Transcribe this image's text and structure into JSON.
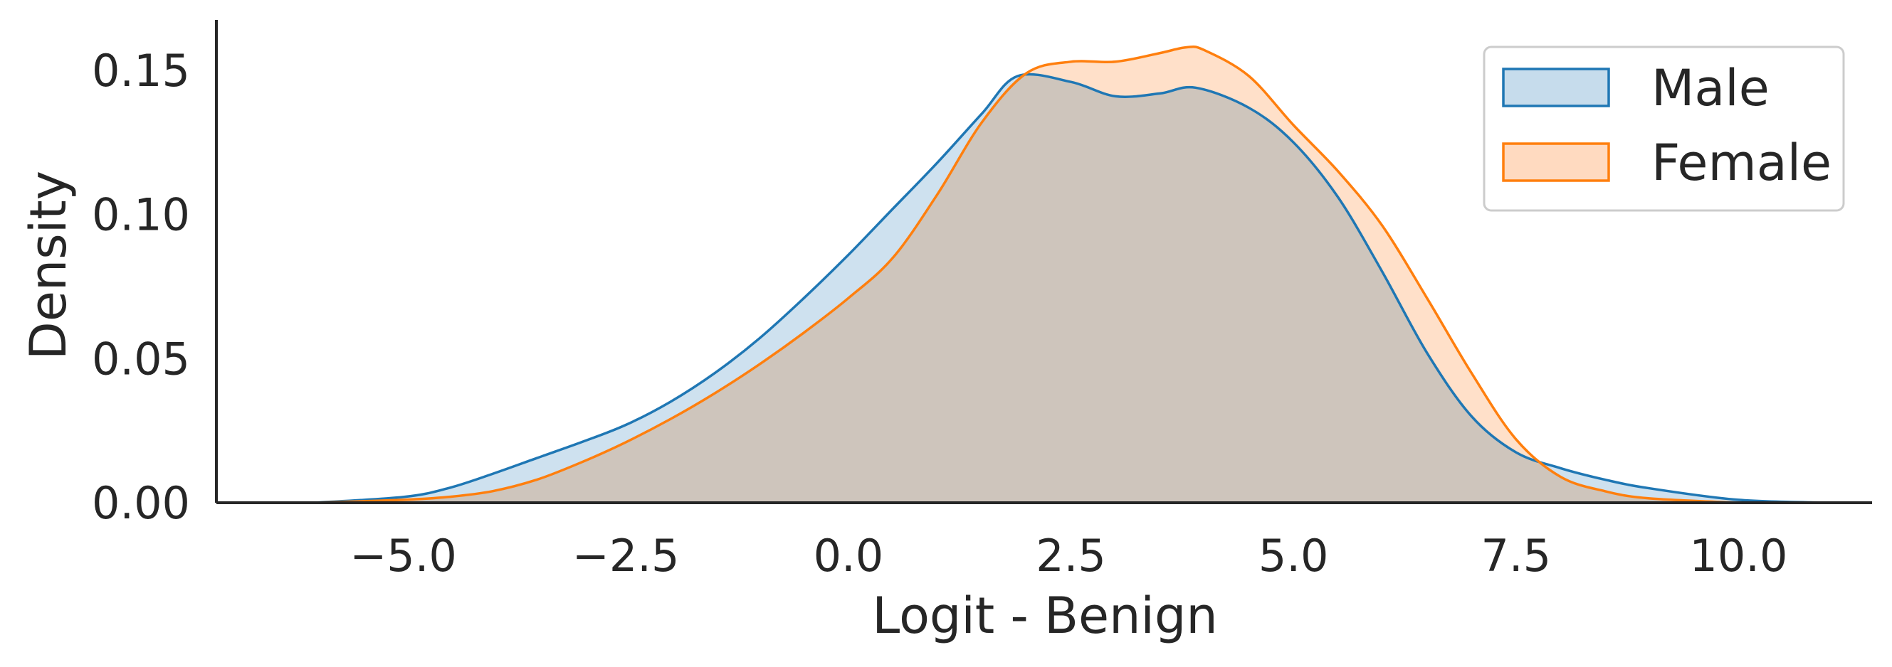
{
  "chart_data": {
    "type": "area",
    "title": "",
    "xlabel": "Logit - Benign",
    "ylabel": "Density",
    "xlim": [
      -7.1,
      11.5
    ],
    "ylim": [
      0,
      0.1675
    ],
    "xticks": [
      -5.0,
      -2.5,
      0.0,
      2.5,
      5.0,
      7.5,
      10.0
    ],
    "xtick_labels": [
      "−5.0",
      "−2.5",
      "0.0",
      "2.5",
      "5.0",
      "7.5",
      "10.0"
    ],
    "yticks": [
      0.0,
      0.05,
      0.1,
      0.15
    ],
    "ytick_labels": [
      "0.00",
      "0.05",
      "0.10",
      "0.15"
    ],
    "grid": false,
    "legend_position": "top-right",
    "series": [
      {
        "name": "Male",
        "color": "#1f77b4",
        "fill": "#c6dcec",
        "x": [
          -6.0,
          -5.0,
          -4.5,
          -4.0,
          -3.5,
          -3.0,
          -2.5,
          -2.0,
          -1.5,
          -1.0,
          -0.5,
          0.0,
          0.5,
          1.0,
          1.5,
          1.9,
          2.5,
          3.0,
          3.5,
          3.9,
          4.5,
          5.0,
          5.5,
          6.0,
          6.5,
          7.0,
          7.5,
          8.0,
          8.5,
          9.0,
          10.0,
          11.0
        ],
        "y": [
          0.0,
          0.002,
          0.005,
          0.01,
          0.0155,
          0.021,
          0.027,
          0.035,
          0.045,
          0.057,
          0.071,
          0.086,
          0.102,
          0.118,
          0.135,
          0.148,
          0.146,
          0.141,
          0.142,
          0.144,
          0.137,
          0.125,
          0.106,
          0.08,
          0.052,
          0.03,
          0.0175,
          0.012,
          0.008,
          0.005,
          0.001,
          0.0
        ]
      },
      {
        "name": "Female",
        "color": "#ff7f0e",
        "fill": "#ffdac0",
        "x": [
          -6.0,
          -5.0,
          -4.5,
          -4.0,
          -3.5,
          -3.0,
          -2.5,
          -2.0,
          -1.5,
          -1.0,
          -0.5,
          0.0,
          0.5,
          1.0,
          1.5,
          2.0,
          2.5,
          3.0,
          3.5,
          3.8,
          4.0,
          4.5,
          5.0,
          5.5,
          6.0,
          6.5,
          7.0,
          7.5,
          8.0,
          8.5,
          9.0,
          10.0
        ],
        "y": [
          0.0,
          0.001,
          0.002,
          0.004,
          0.008,
          0.014,
          0.021,
          0.029,
          0.038,
          0.048,
          0.059,
          0.071,
          0.085,
          0.107,
          0.132,
          0.149,
          0.153,
          0.153,
          0.156,
          0.158,
          0.157,
          0.148,
          0.131,
          0.115,
          0.096,
          0.071,
          0.045,
          0.022,
          0.009,
          0.004,
          0.0015,
          0.0
        ]
      }
    ]
  }
}
